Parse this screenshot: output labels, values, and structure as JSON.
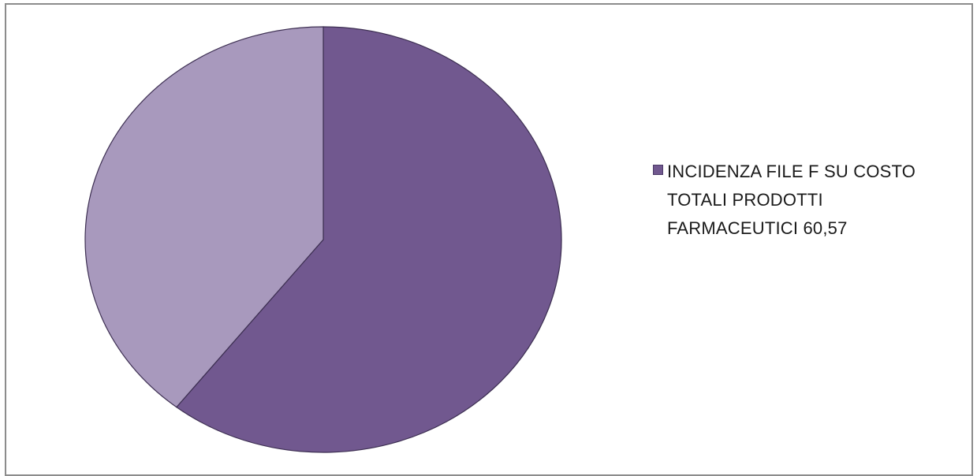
{
  "chart_data": {
    "type": "pie",
    "title": "",
    "slices": [
      {
        "label": "INCIDENZA FILE F SU COSTO TOTALI PRODOTTI FARMACEUTICI 60,57",
        "value": 60.57,
        "color": "#71588f"
      },
      {
        "label": "",
        "value": 39.43,
        "color": "#a899bd"
      }
    ],
    "start_angle_deg": 0,
    "direction": "clockwise",
    "legend": {
      "position": "right",
      "entries": [
        "INCIDENZA FILE F SU COSTO TOTALI PRODOTTI FARMACEUTICI 60,57"
      ]
    }
  }
}
